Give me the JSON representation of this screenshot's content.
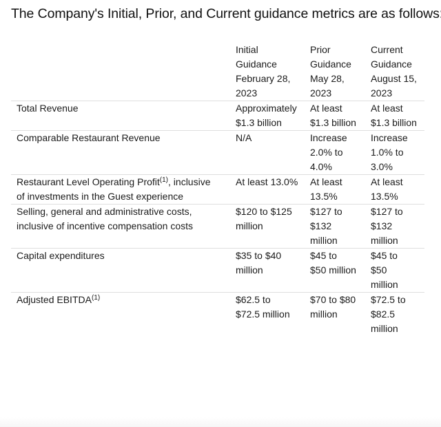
{
  "title": "The Company's Initial, Prior, and Current guidance metrics are as follows:",
  "table": {
    "headers": [
      {
        "lines": [
          "",
          "",
          "",
          ""
        ]
      },
      {
        "lines": [
          "Initial",
          "Guidance",
          "February 28,",
          "2023"
        ]
      },
      {
        "lines": [
          "Prior",
          "Guidance",
          "May 28,",
          "2023"
        ]
      },
      {
        "lines": [
          "Current",
          "Guidance",
          "August 15,",
          "2023"
        ]
      }
    ],
    "rows": [
      {
        "metric": {
          "lines": [
            "Total Revenue"
          ]
        },
        "initial": {
          "lines": [
            "Approximately",
            "$1.3 billion"
          ]
        },
        "prior": {
          "lines": [
            "At least",
            "$1.3 billion"
          ]
        },
        "current": {
          "lines": [
            "At least",
            "$1.3 billion"
          ]
        }
      },
      {
        "metric": {
          "lines": [
            "Comparable Restaurant Revenue"
          ]
        },
        "initial": {
          "lines": [
            "N/A"
          ]
        },
        "prior": {
          "lines": [
            "Increase",
            "2.0% to",
            "4.0%"
          ]
        },
        "current": {
          "lines": [
            "Increase",
            "1.0% to",
            "3.0%"
          ]
        }
      },
      {
        "metric": {
          "line1_pre": "Restaurant Level Operating Profit",
          "line1_sup": "(1)",
          "line1_post": ", inclusive",
          "line2": "of investments in the Guest experience"
        },
        "initial": {
          "lines": [
            "At least 13.0%"
          ]
        },
        "prior": {
          "lines": [
            "At least",
            "13.5%"
          ]
        },
        "current": {
          "lines": [
            "At least",
            "13.5%"
          ]
        }
      },
      {
        "metric": {
          "lines": [
            "Selling, general and administrative costs,",
            "inclusive of incentive compensation costs"
          ]
        },
        "initial": {
          "lines": [
            "$120 to $125",
            "million"
          ]
        },
        "prior": {
          "lines": [
            "$127 to",
            "$132",
            "million"
          ]
        },
        "current": {
          "lines": [
            "$127 to",
            "$132",
            "million"
          ]
        }
      },
      {
        "metric": {
          "lines": [
            "Capital expenditures"
          ]
        },
        "initial": {
          "lines": [
            "$35 to $40",
            "million"
          ]
        },
        "prior": {
          "lines": [
            "$45 to",
            "$50 million"
          ]
        },
        "current": {
          "lines": [
            "$45 to",
            "$50",
            "million"
          ]
        }
      },
      {
        "metric": {
          "pre": "Adjusted EBITDA",
          "sup": "(1)"
        },
        "initial": {
          "lines": [
            "$62.5 to",
            "$72.5 million"
          ]
        },
        "prior": {
          "lines": [
            "$70 to $80",
            "million"
          ]
        },
        "current": {
          "lines": [
            "$72.5 to",
            "$82.5",
            "million"
          ]
        }
      }
    ]
  },
  "colors": {
    "text": "#1a1a1a",
    "divider": "#dedede",
    "background": "#ffffff"
  }
}
